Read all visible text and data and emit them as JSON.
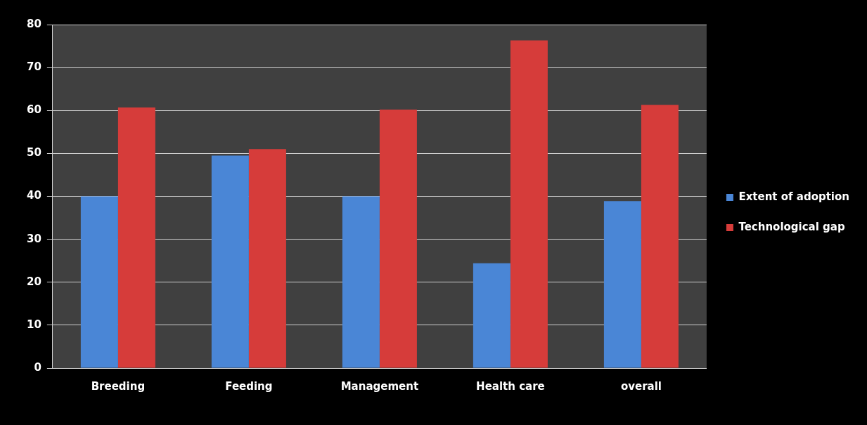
{
  "chart_data": {
    "type": "bar",
    "categories": [
      "Breeding",
      "Feeding",
      "Management",
      "Health care",
      "overall"
    ],
    "series": [
      {
        "name": "Extent of adoption",
        "color": "#4a86d6",
        "values": [
          40,
          49.5,
          40,
          24.4,
          38.9
        ]
      },
      {
        "name": "Technological gap",
        "color": "#d63c3a",
        "values": [
          60.7,
          51,
          60.2,
          76.3,
          61.3
        ]
      }
    ],
    "ylim": [
      0,
      80
    ],
    "yticks": [
      0,
      10,
      20,
      30,
      40,
      50,
      60,
      70,
      80
    ],
    "grid": "y",
    "legend": "right"
  }
}
